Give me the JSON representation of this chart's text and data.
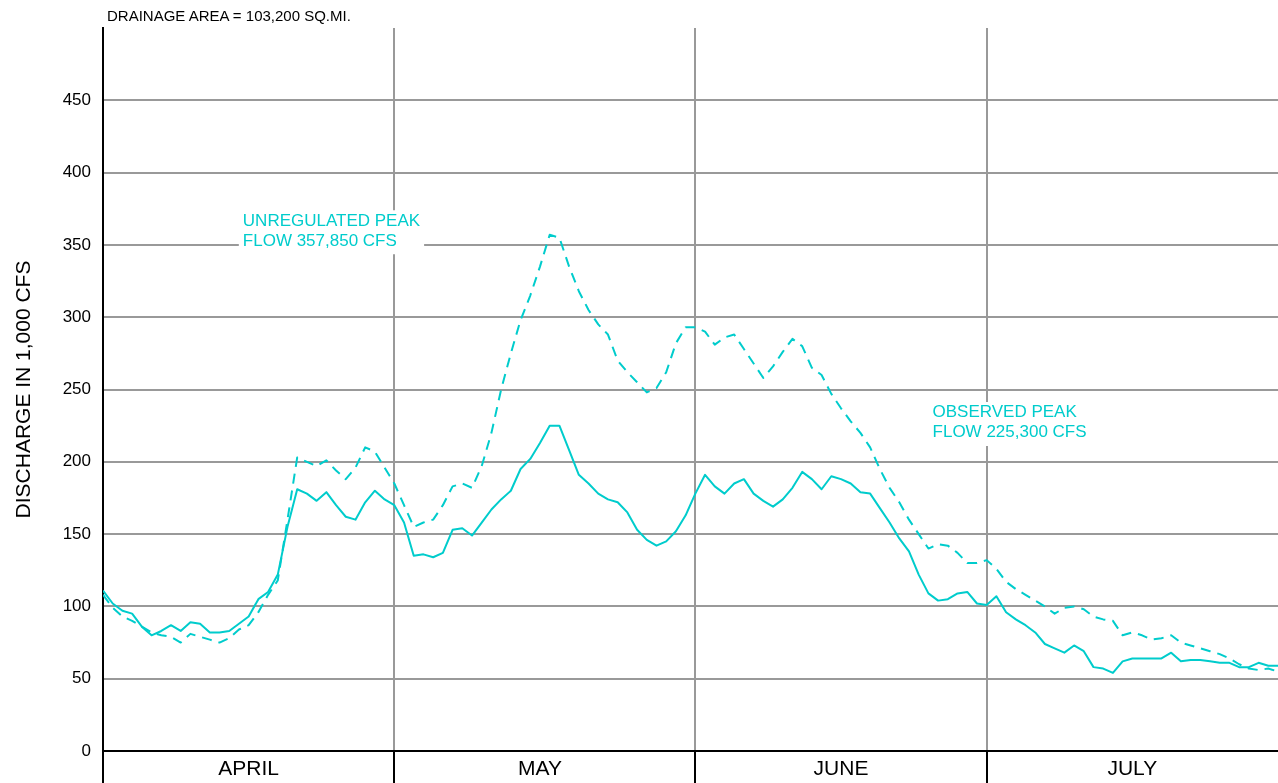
{
  "chart_data": {
    "type": "line",
    "title": "DRAINAGE AREA = 103,200 SQ.MI.",
    "ylabel": "DISCHARGE IN 1,000 CFS",
    "annotations": [
      "UNREGULATED PEAK\nFLOW 357,850 CFS",
      "OBSERVED PEAK\nFLOW 225,300 CFS"
    ],
    "x": [
      "--04-01",
      "--04-02",
      "--04-03",
      "--04-04",
      "--04-05",
      "--04-06",
      "--04-07",
      "--04-08",
      "--04-09",
      "--04-10",
      "--04-11",
      "--04-12",
      "--04-13",
      "--04-14",
      "--04-15",
      "--04-16",
      "--04-17",
      "--04-18",
      "--04-19",
      "--04-20",
      "--04-21",
      "--04-22",
      "--04-23",
      "--04-24",
      "--04-25",
      "--04-26",
      "--04-27",
      "--04-28",
      "--04-29",
      "--04-30",
      "--05-01",
      "--05-02",
      "--05-03",
      "--05-04",
      "--05-05",
      "--05-06",
      "--05-07",
      "--05-08",
      "--05-09",
      "--05-10",
      "--05-11",
      "--05-12",
      "--05-13",
      "--05-14",
      "--05-15",
      "--05-16",
      "--05-17",
      "--05-18",
      "--05-19",
      "--05-20",
      "--05-21",
      "--05-22",
      "--05-23",
      "--05-24",
      "--05-25",
      "--05-26",
      "--05-27",
      "--05-28",
      "--05-29",
      "--05-30",
      "--05-31",
      "--06-01",
      "--06-02",
      "--06-03",
      "--06-04",
      "--06-05",
      "--06-06",
      "--06-07",
      "--06-08",
      "--06-09",
      "--06-10",
      "--06-11",
      "--06-12",
      "--06-13",
      "--06-14",
      "--06-15",
      "--06-16",
      "--06-17",
      "--06-18",
      "--06-19",
      "--06-20",
      "--06-21",
      "--06-22",
      "--06-23",
      "--06-24",
      "--06-25",
      "--06-26",
      "--06-27",
      "--06-28",
      "--06-29",
      "--06-30",
      "--07-01",
      "--07-02",
      "--07-03",
      "--07-04",
      "--07-05",
      "--07-06",
      "--07-07",
      "--07-08",
      "--07-09",
      "--07-10",
      "--07-11",
      "--07-12",
      "--07-13",
      "--07-14",
      "--07-15",
      "--07-16",
      "--07-17",
      "--07-18",
      "--07-19",
      "--07-20",
      "--07-21",
      "--07-22",
      "--07-23",
      "--07-24",
      "--07-25",
      "--07-26",
      "--07-27",
      "--07-28",
      "--07-29",
      "--07-30",
      "--07-31"
    ],
    "series": [
      {
        "color": "#00cccc",
        "line_style": "solid",
        "values": [
          111,
          102,
          97,
          95,
          86,
          80,
          83,
          87,
          83,
          89,
          88,
          82,
          82,
          83,
          88,
          93,
          105,
          110,
          122,
          155,
          181,
          178,
          173,
          179,
          170,
          162,
          160,
          172,
          180,
          174,
          170,
          158,
          135,
          136,
          134,
          137,
          153,
          154,
          149,
          158,
          167,
          174,
          180,
          195,
          202,
          213,
          225,
          225,
          208,
          191,
          185,
          178,
          174,
          172,
          165,
          153,
          146,
          142,
          145,
          152,
          163,
          178,
          191,
          183,
          178,
          185,
          188,
          178,
          173,
          169,
          174,
          182,
          193,
          188,
          181,
          190,
          188,
          185,
          179,
          178,
          168,
          158,
          147,
          138,
          122,
          109,
          104,
          105,
          109,
          110,
          102,
          101,
          107,
          96,
          91,
          87,
          82,
          74,
          71,
          68,
          73,
          69,
          58,
          57,
          54,
          62,
          64,
          64,
          64,
          64,
          68,
          62,
          63,
          63,
          62,
          61,
          61,
          58,
          58,
          61,
          59,
          59
        ]
      },
      {
        "color": "#00cccc",
        "line_style": "dashed",
        "values": [
          108,
          99,
          93,
          90,
          86,
          82,
          80,
          79,
          75,
          81,
          79,
          77,
          75,
          78,
          84,
          87,
          96,
          108,
          118,
          160,
          203,
          200,
          197,
          201,
          194,
          188,
          196,
          210,
          207,
          196,
          185,
          170,
          155,
          158,
          160,
          170,
          183,
          185,
          182,
          197,
          220,
          250,
          275,
          298,
          315,
          335,
          357,
          355,
          335,
          318,
          305,
          295,
          288,
          270,
          262,
          255,
          248,
          251,
          262,
          282,
          293,
          293,
          290,
          281,
          286,
          288,
          278,
          268,
          258,
          266,
          276,
          285,
          280,
          265,
          260,
          247,
          237,
          228,
          220,
          210,
          195,
          182,
          172,
          160,
          150,
          140,
          143,
          142,
          137,
          130,
          130,
          132,
          126,
          117,
          112,
          108,
          104,
          100,
          95,
          99,
          100,
          98,
          93,
          91,
          90,
          80,
          82,
          80,
          77,
          78,
          80,
          75,
          73,
          71,
          69,
          67,
          64,
          60,
          57,
          56,
          57,
          55
        ]
      }
    ],
    "xlim": [
      "--04-01",
      "--07-31"
    ],
    "xticks": [
      {
        "value": "--04-01",
        "label": null
      },
      {
        "value": "--04-16",
        "label": "APRIL"
      },
      {
        "value": "--05-01",
        "label": null
      },
      {
        "value": "--05-16",
        "label": "MAY"
      },
      {
        "value": "--06-01",
        "label": null
      },
      {
        "value": "--06-16",
        "label": "JUNE"
      },
      {
        "value": "--07-01",
        "label": null
      },
      {
        "value": "--07-16",
        "label": "JULY"
      }
    ],
    "ylim": [
      0,
      500
    ],
    "yticks": [
      0,
      50,
      100,
      150,
      200,
      250,
      300,
      350,
      400,
      450
    ],
    "grid": true,
    "legend": false,
    "marker": "none"
  }
}
